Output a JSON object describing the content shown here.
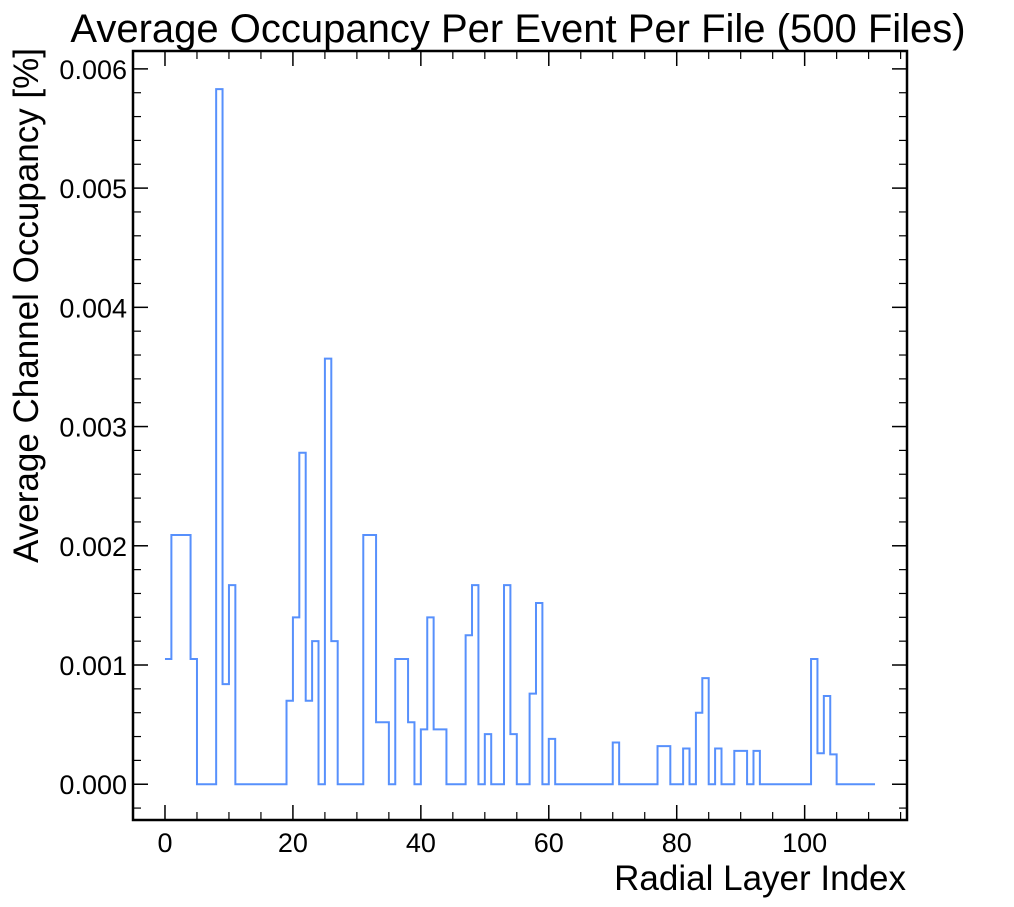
{
  "chart_data": {
    "type": "step",
    "title": "Average Occupancy Per Event Per File (500 Files)",
    "xlabel": "Radial Layer Index",
    "ylabel": "Average Channel Occupancy [%]",
    "xlim": [
      -5,
      116
    ],
    "ylim": [
      -0.0003,
      0.00615
    ],
    "xticks": [
      0,
      20,
      40,
      60,
      80,
      100
    ],
    "xtick_labels": [
      "0",
      "20",
      "40",
      "60",
      "80",
      "100"
    ],
    "yticks": [
      0.0,
      0.001,
      0.002,
      0.003,
      0.004,
      0.005,
      0.006
    ],
    "ytick_labels": [
      "0.000",
      "0.001",
      "0.002",
      "0.003",
      "0.004",
      "0.005",
      "0.006"
    ],
    "grid": false,
    "series": [
      {
        "color": "#5790fc",
        "bin_width": 1,
        "x_start": 0,
        "values": [
          0.00105,
          0.00209,
          0.00209,
          0.00209,
          0.00105,
          0,
          0,
          0,
          0.00583,
          0.00084,
          0.00167,
          0,
          0,
          0,
          0,
          0,
          0,
          0,
          0,
          0.0007,
          0.0014,
          0.00278,
          0.0007,
          0.0012,
          0,
          0.00357,
          0.0012,
          0,
          0,
          0,
          0,
          0.00209,
          0.00209,
          0.00052,
          0.00052,
          0,
          0.00105,
          0.00105,
          0.00052,
          0,
          0.00046,
          0.0014,
          0.00046,
          0.00046,
          0,
          0,
          0,
          0.00125,
          0.00167,
          0,
          0.00042,
          0,
          0,
          0.00167,
          0.00042,
          0,
          0,
          0.00076,
          0.00152,
          0,
          0.00038,
          0,
          0,
          0,
          0,
          0,
          0,
          0,
          0,
          0,
          0.00035,
          0,
          0,
          0,
          0,
          0,
          0,
          0.00032,
          0.00032,
          0,
          0,
          0.0003,
          0,
          0.0006,
          0.00089,
          0,
          0.0003,
          0,
          0,
          0.00028,
          0.00028,
          0,
          0.00028,
          0,
          0,
          0,
          0,
          0,
          0,
          0,
          0,
          0.00105,
          0.00026,
          0.00074,
          0.00025,
          0,
          0,
          0,
          0,
          0,
          0
        ]
      }
    ]
  }
}
